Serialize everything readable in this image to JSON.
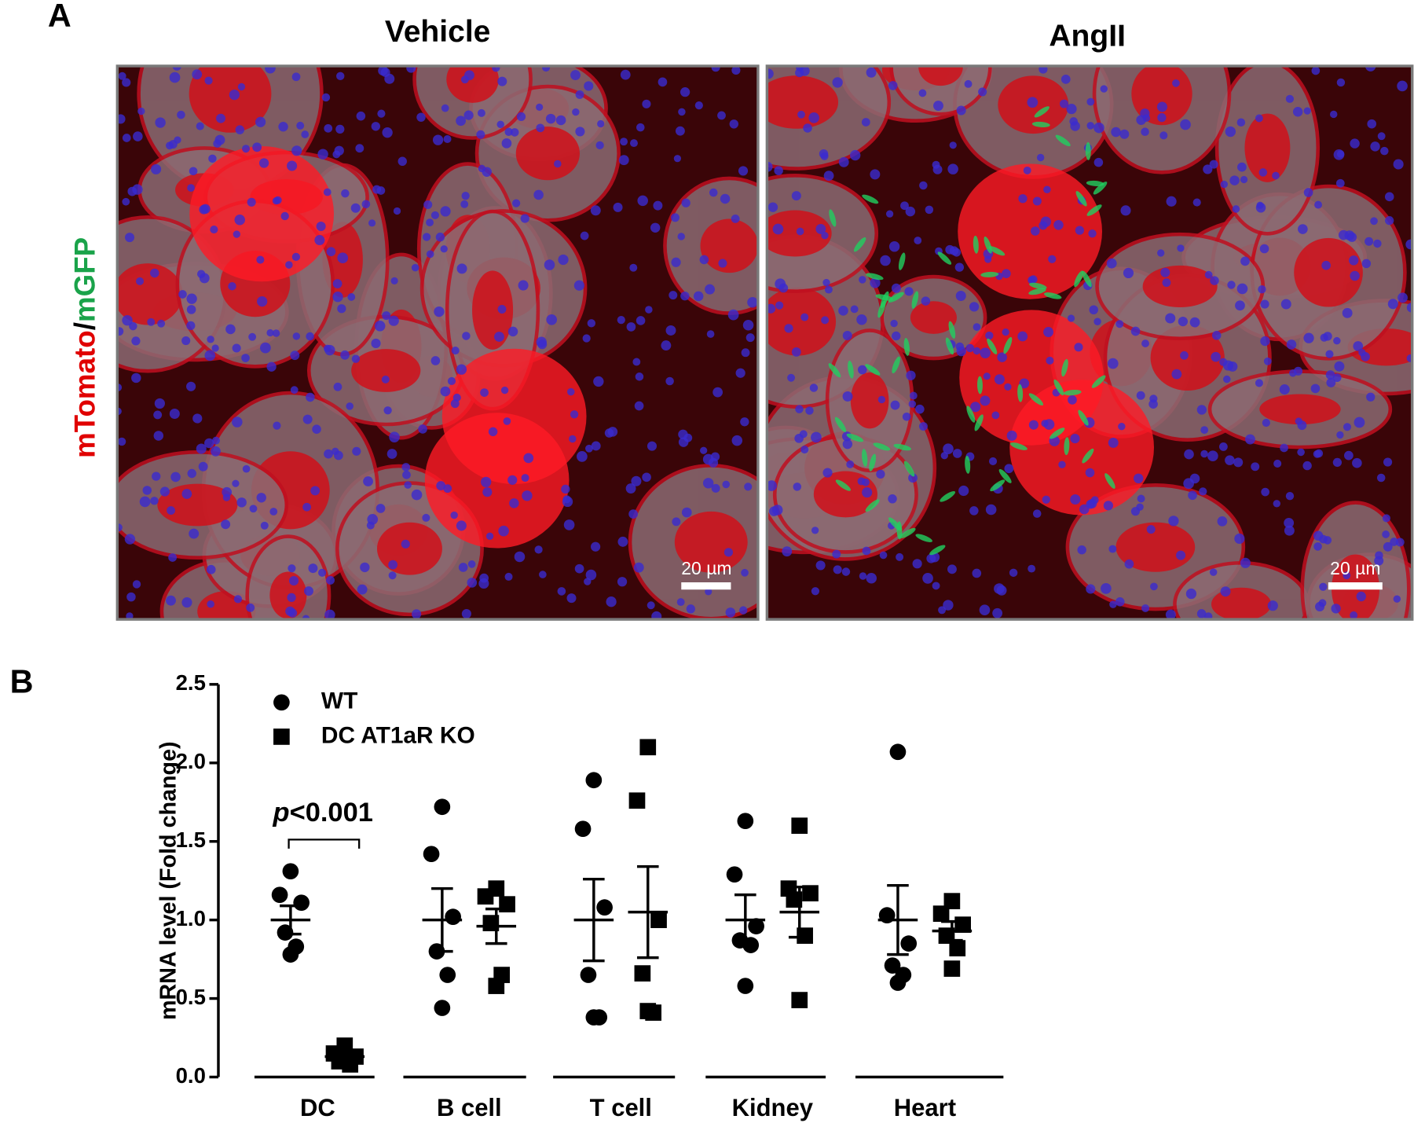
{
  "panel_labels": [
    "A",
    "B"
  ],
  "images": [
    {
      "title": "Vehicle",
      "scale_bar": "20 µm"
    },
    {
      "title": "AngII",
      "scale_bar": "20 µm"
    }
  ],
  "image_side_label": [
    "mTomato",
    "/",
    "mGFP"
  ],
  "chart_data": {
    "type": "scatter",
    "ylabel": "mRNA level (Fold change)",
    "ylim": [
      0,
      2.5
    ],
    "yticks": [
      {
        "value": 0,
        "label": "0.0"
      },
      {
        "value": 0.5,
        "label": "0.5"
      },
      {
        "value": 1,
        "label": "1.0"
      },
      {
        "value": 1.5,
        "label": "1.5"
      },
      {
        "value": 2,
        "label": "2.0"
      },
      {
        "value": 2.5,
        "label": "2.5"
      }
    ],
    "categories": [
      "DC",
      "B cell",
      "T cell",
      "Kidney",
      "Heart"
    ],
    "legend": "top-left",
    "series": [
      {
        "name": "WT",
        "marker": "circle",
        "color": "#000000",
        "values": [
          [
            1.31,
            1.16,
            1.11,
            0.92,
            0.83,
            0.78
          ],
          [
            1.72,
            1.42,
            1.02,
            0.8,
            0.65,
            0.44
          ],
          [
            1.89,
            1.58,
            1.08,
            0.65,
            0.38,
            0.38
          ],
          [
            1.63,
            1.29,
            0.96,
            0.87,
            0.84,
            0.58
          ],
          [
            2.07,
            1.03,
            0.85,
            0.71,
            0.65,
            0.6
          ]
        ],
        "mean": [
          1.0,
          1.0,
          1.0,
          1.0,
          1.0
        ],
        "sem": [
          0.09,
          0.2,
          0.26,
          0.16,
          0.22
        ]
      },
      {
        "name": "DC AT1aR KO",
        "marker": "square",
        "color": "#000000",
        "values": [
          [
            0.2,
            0.15,
            0.13,
            0.1,
            0.08,
            0.12
          ],
          [
            1.2,
            1.15,
            1.1,
            0.98,
            0.65,
            0.58
          ],
          [
            2.1,
            1.76,
            1.0,
            0.66,
            0.41,
            0.42
          ],
          [
            1.6,
            1.2,
            1.17,
            1.13,
            0.9,
            0.49
          ],
          [
            1.12,
            1.04,
            0.97,
            0.9,
            0.82,
            0.69
          ]
        ],
        "mean": [
          0.13,
          0.96,
          1.05,
          1.05,
          0.93
        ],
        "sem": [
          0.02,
          0.11,
          0.29,
          0.16,
          0.06
        ]
      }
    ],
    "annotation": [
      "p",
      "<0.001"
    ]
  }
}
